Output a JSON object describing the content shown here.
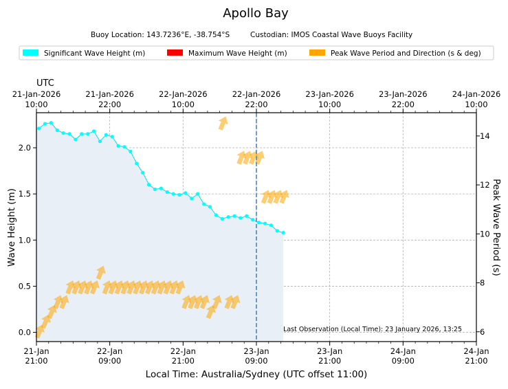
{
  "chart_data": {
    "type": "line",
    "title": "Apollo Bay",
    "subtitle_location": "Buoy Location: 143.7236°E, -38.754°S",
    "subtitle_custodian": "Custodian: IMOS Coastal Wave Buoys Facility",
    "legend": [
      {
        "label": "Significant Wave Height (m)",
        "color": "#00ffff"
      },
      {
        "label": "Maximum Wave Height (m)",
        "color": "#ff0000"
      },
      {
        "label": "Peak Wave Period and Direction (s & deg)",
        "color": "#ffa500"
      }
    ],
    "top_axis_title": "UTC",
    "top_ticks": [
      {
        "date": "21-Jan-2026",
        "time": "10:00"
      },
      {
        "date": "21-Jan-2026",
        "time": "22:00"
      },
      {
        "date": "22-Jan-2026",
        "time": "10:00"
      },
      {
        "date": "22-Jan-2026",
        "time": "22:00"
      },
      {
        "date": "23-Jan-2026",
        "time": "10:00"
      },
      {
        "date": "23-Jan-2026",
        "time": "22:00"
      },
      {
        "date": "24-Jan-2026",
        "time": "10:00"
      }
    ],
    "bottom_ticks": [
      {
        "date": "21-Jan",
        "time": "21:00"
      },
      {
        "date": "22-Jan",
        "time": "09:00"
      },
      {
        "date": "22-Jan",
        "time": "21:00"
      },
      {
        "date": "23-Jan",
        "time": "09:00"
      },
      {
        "date": "23-Jan",
        "time": "21:00"
      },
      {
        "date": "24-Jan",
        "time": "09:00"
      },
      {
        "date": "24-Jan",
        "time": "21:00"
      }
    ],
    "xlabel": "Local Time: Australia/Sydney (UTC offset 11:00)",
    "ylabel": "Wave Height (m)",
    "y2label": "Peak Wave Period (s)",
    "x_range_hours": [
      0,
      72
    ],
    "ylim": [
      -0.1,
      2.38
    ],
    "y_ticks": [
      "0.0",
      "0.5",
      "1.0",
      "1.5",
      "2.0"
    ],
    "y2lim": [
      5.6,
      14.95
    ],
    "y2_ticks": [
      "6",
      "8",
      "10",
      "12",
      "14"
    ],
    "now_marker_hours": 36,
    "annotation": "Last Observation (Local Time): 23 January 2026, 13:25",
    "wave_height": {
      "x_hours": [
        0.4,
        1.4,
        2.4,
        3.4,
        4.4,
        5.4,
        6.4,
        7.4,
        8.4,
        9.4,
        10.4,
        11.4,
        12.4,
        13.4,
        14.4,
        15.4,
        16.4,
        17.4,
        18.4,
        19.4,
        20.4,
        21.4,
        22.4,
        23.4,
        24.4,
        25.4,
        26.4,
        27.4,
        28.4,
        29.4,
        30.4,
        31.4,
        32.4,
        33.4,
        34.4,
        35.4,
        36.4,
        37.4,
        38.4,
        39.4,
        40.4
      ],
      "values": [
        2.21,
        2.26,
        2.27,
        2.19,
        2.16,
        2.15,
        2.09,
        2.15,
        2.15,
        2.18,
        2.07,
        2.14,
        2.12,
        2.02,
        2.01,
        1.96,
        1.83,
        1.73,
        1.6,
        1.55,
        1.56,
        1.52,
        1.5,
        1.49,
        1.51,
        1.45,
        1.5,
        1.39,
        1.36,
        1.27,
        1.23,
        1.25,
        1.26,
        1.24,
        1.26,
        1.22,
        1.19,
        1.18,
        1.16,
        1.1,
        1.08
      ]
    },
    "peak_period": {
      "x_hours": [
        0.5,
        1.5,
        2.5,
        3.5,
        4.5,
        5.5,
        6.5,
        7.5,
        8.5,
        9.5,
        10.5,
        11.5,
        12.5,
        13.5,
        14.5,
        15.5,
        16.5,
        17.5,
        18.5,
        19.5,
        20.5,
        21.5,
        22.5,
        23.5,
        24.5,
        25.5,
        26.5,
        27.5,
        28.5,
        29.5,
        30.5,
        31.5,
        32.5,
        33.5,
        34.5,
        35.5,
        36.5,
        37.5,
        38.5,
        39.5,
        40.5
      ],
      "values": [
        6.0,
        6.4,
        6.8,
        7.2,
        7.2,
        7.8,
        7.8,
        7.8,
        7.8,
        7.8,
        8.4,
        7.8,
        7.8,
        7.8,
        7.8,
        7.8,
        7.8,
        7.8,
        7.8,
        7.8,
        7.8,
        7.8,
        7.8,
        7.8,
        7.2,
        7.2,
        7.2,
        7.2,
        6.8,
        7.2,
        14.5,
        7.2,
        7.2,
        13.1,
        13.1,
        13.1,
        13.1,
        11.5,
        11.5,
        11.5,
        11.5
      ]
    }
  }
}
